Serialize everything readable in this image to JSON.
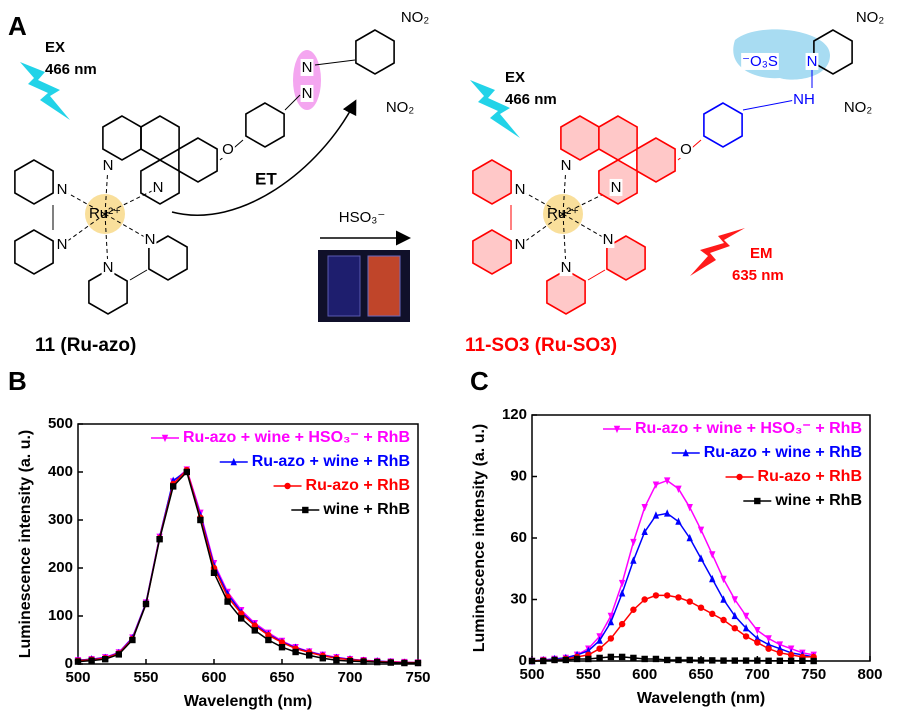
{
  "scheme": {
    "panel": "A",
    "reagent": "HSO₃⁻",
    "left": {
      "ex": "EX",
      "ex_nm": "466 nm",
      "et": "ET",
      "caption": "11 (Ru-azo)",
      "atoms": [
        "N",
        "N",
        "N",
        "N",
        "N",
        "N",
        "Ru²⁺",
        "O",
        "N",
        "N",
        "NO₂",
        "NO₂"
      ]
    },
    "right": {
      "ex": "EX",
      "ex_nm": "466 nm",
      "em": "EM",
      "em_nm": "635 nm",
      "caption": "11-SO3 (Ru-SO3)",
      "atoms": [
        "N",
        "N",
        "N",
        "N",
        "N",
        "N",
        "Ru²⁺",
        "O",
        "⁻O₃S",
        "N",
        "NH",
        "NO₂",
        "NO₂"
      ]
    }
  },
  "chart_data": [
    {
      "type": "line",
      "panel": "B",
      "x_label": "Wavelength (nm)",
      "y_label": "Luminescence intensity (a. u.)",
      "xlim": [
        500,
        750
      ],
      "xticks": [
        500,
        550,
        600,
        650,
        700,
        750
      ],
      "ylim": [
        0,
        500
      ],
      "yticks": [
        0,
        100,
        200,
        300,
        400,
        500
      ],
      "legend": "upper right",
      "x": [
        500,
        510,
        520,
        530,
        540,
        550,
        560,
        570,
        580,
        590,
        600,
        610,
        620,
        630,
        640,
        650,
        660,
        670,
        680,
        690,
        700,
        710,
        720,
        730,
        740,
        750
      ],
      "series": [
        {
          "name": "Ru-azo + wine + HSO₃⁻ + RhB",
          "color": "#ff00ff",
          "marker": "triangle-down",
          "values": [
            8,
            10,
            14,
            24,
            55,
            128,
            265,
            380,
            405,
            315,
            210,
            150,
            112,
            85,
            65,
            48,
            35,
            26,
            19,
            14,
            10,
            8,
            6,
            5,
            4,
            3
          ]
        },
        {
          "name": "Ru-azo + wine + RhB",
          "color": "#0000ff",
          "marker": "triangle-up",
          "values": [
            8,
            10,
            13,
            23,
            54,
            127,
            264,
            382,
            402,
            310,
            205,
            146,
            108,
            82,
            62,
            46,
            34,
            25,
            18,
            13,
            10,
            7,
            6,
            4,
            3,
            3
          ]
        },
        {
          "name": "Ru-azo + RhB",
          "color": "#ff0000",
          "marker": "circle",
          "values": [
            7,
            9,
            12,
            22,
            52,
            125,
            262,
            375,
            404,
            305,
            200,
            140,
            105,
            80,
            60,
            45,
            32,
            24,
            17,
            12,
            9,
            7,
            5,
            4,
            3,
            3
          ]
        },
        {
          "name": "wine + RhB",
          "color": "#000000",
          "marker": "square",
          "values": [
            5,
            7,
            10,
            20,
            50,
            125,
            260,
            370,
            400,
            300,
            190,
            130,
            95,
            70,
            50,
            35,
            25,
            18,
            12,
            8,
            6,
            5,
            4,
            3,
            2,
            2
          ]
        }
      ]
    },
    {
      "type": "line",
      "panel": "C",
      "x_label": "Wavelength (nm)",
      "y_label": "Luminescence intensity (a. u.)",
      "xlim": [
        500,
        800
      ],
      "xticks": [
        500,
        550,
        600,
        650,
        700,
        750,
        800
      ],
      "ylim": [
        0,
        120
      ],
      "yticks": [
        0,
        30,
        60,
        90,
        120
      ],
      "legend": "upper right",
      "x": [
        500,
        510,
        520,
        530,
        540,
        550,
        560,
        570,
        580,
        590,
        600,
        610,
        620,
        630,
        640,
        650,
        660,
        670,
        680,
        690,
        700,
        710,
        720,
        730,
        740,
        750
      ],
      "series": [
        {
          "name": "Ru-azo + wine + HSO₃⁻ + RhB",
          "color": "#ff00ff",
          "marker": "triangle-down",
          "values": [
            0,
            0.5,
            1,
            1.5,
            3,
            6,
            12,
            22,
            38,
            58,
            75,
            86,
            88,
            84,
            75,
            64,
            52,
            40,
            30,
            22,
            15,
            11,
            8,
            6,
            4,
            3
          ]
        },
        {
          "name": "Ru-azo + wine + RhB",
          "color": "#0000ff",
          "marker": "triangle-up",
          "values": [
            0,
            0.5,
            1,
            1.5,
            3,
            5,
            10,
            19,
            33,
            49,
            63,
            71,
            72,
            68,
            60,
            50,
            40,
            30,
            22,
            16,
            11,
            8,
            6,
            4,
            3,
            2
          ]
        },
        {
          "name": "Ru-azo + RhB",
          "color": "#ff0000",
          "marker": "circle",
          "values": [
            0,
            0.3,
            0.5,
            1,
            2,
            3,
            6,
            11,
            18,
            25,
            30,
            32,
            32,
            31,
            29,
            26,
            23,
            20,
            16,
            12,
            9,
            6,
            4,
            3,
            2,
            2
          ]
        },
        {
          "name": "wine + RhB",
          "color": "#000000",
          "marker": "square",
          "values": [
            0,
            0,
            0.5,
            0.5,
            1,
            1,
            1.5,
            2,
            2,
            1.5,
            1,
            1,
            0.5,
            0.5,
            0.5,
            0.3,
            0.3,
            0.2,
            0.2,
            0.2,
            0.2,
            0.1,
            0.1,
            0.1,
            0.1,
            0
          ]
        }
      ]
    }
  ]
}
